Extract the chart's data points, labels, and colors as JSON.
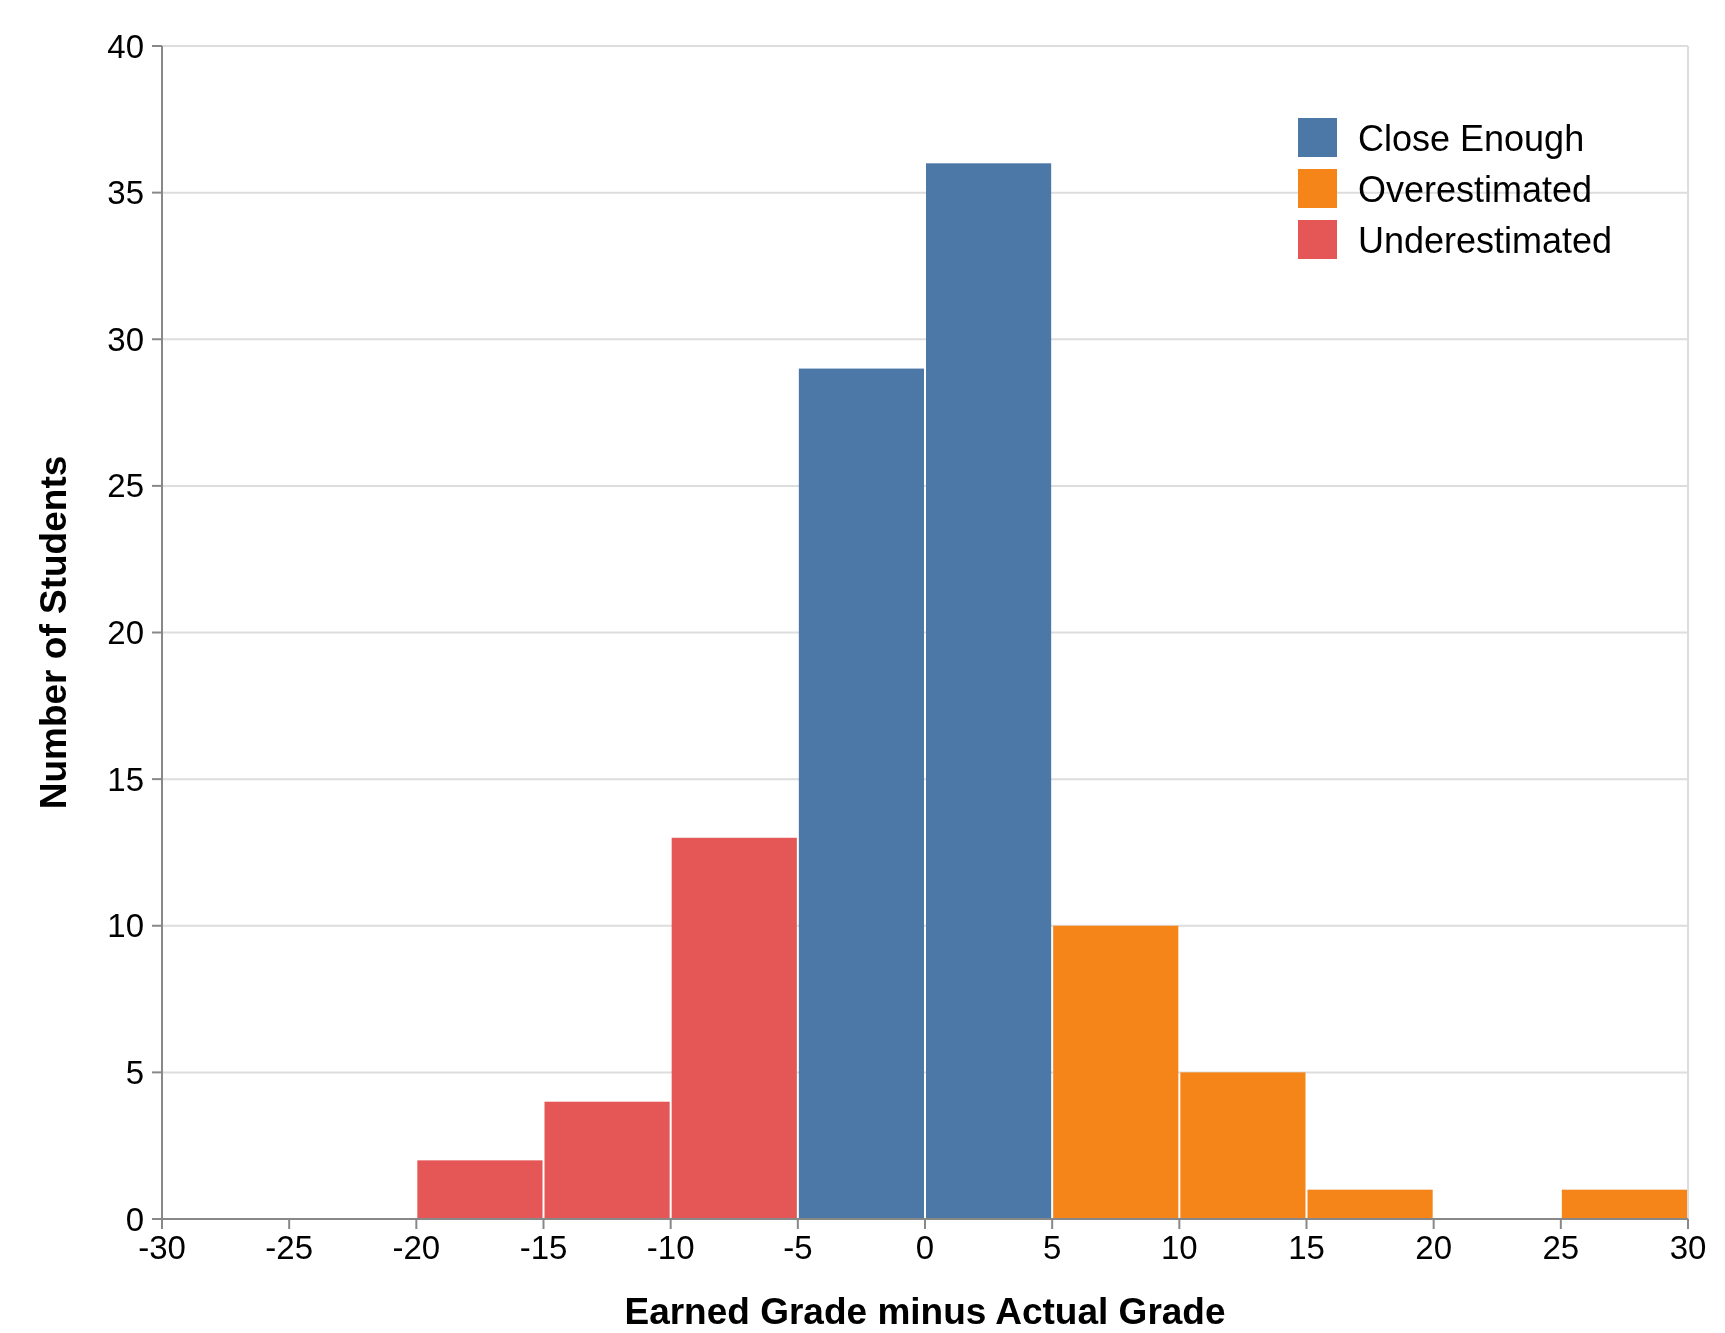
{
  "chart_data": {
    "type": "histogram",
    "xlabel": "Earned Grade minus Actual Grade",
    "ylabel": "Number of Students",
    "bins": [
      -30,
      -25,
      -20,
      -15,
      -10,
      -5,
      0,
      5,
      10,
      15,
      20,
      25,
      30
    ],
    "series": [
      {
        "name": "Close Enough",
        "color": "#4c78a8",
        "values": [
          null,
          null,
          null,
          null,
          null,
          29,
          36,
          null,
          null,
          null,
          null,
          null
        ]
      },
      {
        "name": "Overestimated",
        "color": "#f58518",
        "values": [
          null,
          null,
          null,
          null,
          null,
          null,
          null,
          10,
          5,
          1,
          0,
          1
        ]
      },
      {
        "name": "Underestimated",
        "color": "#e45756",
        "values": [
          0,
          0,
          2,
          4,
          13,
          null,
          null,
          null,
          null,
          null,
          null,
          null
        ]
      }
    ],
    "xlim": [
      -30,
      30
    ],
    "xticks": [
      -30,
      -25,
      -20,
      -15,
      -10,
      -5,
      0,
      5,
      10,
      15,
      20,
      25,
      30
    ],
    "ylim": [
      0,
      40
    ],
    "yticks": [
      0,
      5,
      10,
      15,
      20,
      25,
      30,
      35,
      40
    ],
    "grid": "y",
    "legend": "top right"
  }
}
